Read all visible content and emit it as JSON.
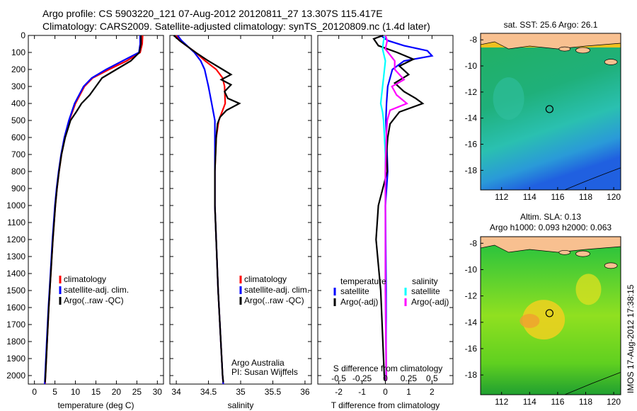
{
  "header": {
    "line1": "Argo profile: CS 5903220_121 07-Aug-2012 20120811_27 13.307S 115.417E",
    "line2": "Climatology: CARS2009. Satellite-adjusted climatology: synTS_20120809.nc (1.4d later)"
  },
  "side_stamp": "IMOS 17-Aug-2012 17:38:15",
  "chart_data": [
    {
      "type": "line",
      "id": "temperature",
      "xlabel": "temperature (deg C)",
      "xlim": [
        -1.5,
        31.5
      ],
      "ylim": [
        0,
        2050
      ],
      "xticks": [
        0,
        5,
        10,
        15,
        20,
        25,
        30
      ],
      "yticks": [
        0,
        100,
        200,
        300,
        400,
        500,
        600,
        700,
        800,
        900,
        1000,
        1100,
        1200,
        1300,
        1400,
        1500,
        1600,
        1700,
        1800,
        1900,
        2000
      ],
      "legend": [
        "climatology",
        "satellite-adj. clim.",
        "Argo(..raw -QC)"
      ],
      "series": [
        {
          "name": "climatology",
          "color": "#ff0000",
          "depth": [
            0,
            50,
            100,
            150,
            200,
            250,
            300,
            400,
            500,
            600,
            700,
            800,
            900,
            1000,
            1200,
            1400,
            1600,
            1800,
            2000,
            2050
          ],
          "values": [
            26.4,
            26.3,
            25.8,
            22.5,
            18.2,
            14.2,
            12.2,
            10,
            8.5,
            7.4,
            6.6,
            6,
            5.5,
            5.1,
            4.5,
            4,
            3.5,
            3.1,
            2.7,
            2.6
          ]
        },
        {
          "name": "satellite-adj. clim.",
          "color": "#0000ff",
          "depth": [
            0,
            50,
            100,
            150,
            200,
            250,
            300,
            400,
            500,
            600,
            700,
            800,
            900,
            1000,
            1200,
            1400,
            1600,
            1800,
            2000,
            2050
          ],
          "values": [
            25.8,
            25.8,
            25.5,
            21.5,
            17.5,
            14,
            12,
            9.8,
            8.4,
            7.3,
            6.5,
            5.9,
            5.4,
            5,
            4.4,
            3.9,
            3.4,
            3,
            2.6,
            2.5
          ]
        },
        {
          "name": "Argo(..raw -QC)",
          "color": "#000000",
          "depth": [
            0,
            50,
            100,
            150,
            200,
            250,
            300,
            350,
            400,
            450,
            500,
            600,
            700,
            800,
            900,
            1000,
            1200,
            1400,
            1600,
            1800,
            2000,
            2040
          ],
          "values": [
            26,
            26,
            25.6,
            23.5,
            20,
            16.5,
            15,
            13.5,
            11.5,
            10.2,
            8.8,
            7.5,
            6.6,
            6,
            5.5,
            5.1,
            4.5,
            4,
            3.5,
            3.1,
            2.7,
            2.6
          ]
        }
      ]
    },
    {
      "type": "line",
      "id": "salinity",
      "xlabel": "salinity",
      "xlim": [
        33.9,
        36.1
      ],
      "ylim": [
        0,
        2050
      ],
      "xticks": [
        34,
        34.5,
        35,
        35.5,
        36
      ],
      "legend": [
        "climatology",
        "satellite-adj. clim.",
        "Argo(..raw -QC)"
      ],
      "annotation": [
        "Argo Australia",
        "PI: Susan Wijffels"
      ],
      "series": [
        {
          "name": "climatology",
          "color": "#ff0000",
          "depth": [
            0,
            30,
            100,
            150,
            200,
            250,
            300,
            400,
            500,
            600,
            800,
            1000,
            1500,
            2000,
            2050
          ],
          "values": [
            34,
            34.05,
            34.3,
            34.45,
            34.62,
            34.72,
            34.75,
            34.76,
            34.66,
            34.62,
            34.6,
            34.6,
            34.65,
            34.72,
            34.73
          ]
        },
        {
          "name": "satellite-adj. clim.",
          "color": "#0000ff",
          "depth": [
            0,
            30,
            100,
            150,
            200,
            250,
            300,
            400,
            500,
            600,
            800,
            1000,
            1500,
            2000,
            2050
          ],
          "values": [
            34.02,
            34.08,
            34.28,
            34.38,
            34.44,
            34.47,
            34.5,
            34.55,
            34.6,
            34.6,
            34.6,
            34.6,
            34.65,
            34.72,
            34.73
          ]
        },
        {
          "name": "Argo(..raw -QC)",
          "color": "#000000",
          "depth": [
            0,
            30,
            100,
            150,
            200,
            230,
            260,
            290,
            330,
            370,
            400,
            440,
            480,
            520,
            600,
            800,
            1000,
            1500,
            2000,
            2040
          ],
          "values": [
            33.96,
            34.05,
            34.3,
            34.5,
            34.72,
            34.85,
            34.7,
            34.85,
            34.75,
            34.8,
            34.98,
            34.78,
            34.68,
            34.64,
            34.62,
            34.6,
            34.6,
            34.65,
            34.72,
            34.73
          ]
        }
      ]
    },
    {
      "type": "line",
      "id": "difference",
      "xlabel": "T difference from climatology",
      "xlabel2": "S difference from climatology",
      "xlim": [
        -2.9,
        2.9
      ],
      "xlim2": [
        -0.725,
        0.725
      ],
      "xticks": [
        -2,
        -1,
        0,
        1,
        2
      ],
      "xticks2": [
        -0.5,
        -0.25,
        0,
        0.25,
        0.5
      ],
      "legend_titles": [
        "temperature",
        "salinity"
      ],
      "legend": [
        "satellite",
        "Argo(-adj)",
        "satellite",
        "Argo(-adj)"
      ],
      "series": [
        {
          "name": "T satellite",
          "axis": "T",
          "color": "#0000ff",
          "depth": [
            0,
            30,
            60,
            90,
            120,
            150,
            200,
            300,
            400,
            500,
            600,
            800,
            1000,
            1500,
            2000,
            2030
          ],
          "values": [
            -0.2,
            0.1,
            0.8,
            1.8,
            2,
            0.8,
            0.3,
            0.1,
            0.05,
            0.02,
            0.05,
            0.1,
            0,
            0.03,
            0.03,
            0.02
          ]
        },
        {
          "name": "T Argo(-adj)",
          "axis": "T",
          "color": "#000000",
          "depth": [
            0,
            20,
            60,
            100,
            140,
            180,
            230,
            280,
            330,
            370,
            400,
            450,
            520,
            600,
            700,
            800,
            1000,
            1200,
            1500,
            2000,
            2030
          ],
          "values": [
            -0.1,
            -0.5,
            -0.3,
            0.5,
            1.2,
            0.6,
            1,
            0.4,
            0.8,
            1.3,
            1.6,
            0.6,
            0.2,
            0.1,
            0.05,
            0.08,
            -0.3,
            -0.4,
            -0.2,
            -0.05,
            0
          ]
        },
        {
          "name": "S satellite",
          "axis": "S",
          "color": "#00ffff",
          "depth": [
            0,
            30,
            80,
            150,
            250,
            350,
            400,
            450,
            500,
            700,
            1000,
            1500,
            2000,
            2030
          ],
          "values": [
            0,
            -0.02,
            -0.03,
            0,
            -0.02,
            -0.04,
            -0.05,
            -0.03,
            -0.02,
            0,
            0,
            0,
            0.01,
            0.01
          ]
        },
        {
          "name": "S Argo(-adj)",
          "axis": "S",
          "color": "#ff00ff",
          "depth": [
            0,
            30,
            80,
            150,
            200,
            260,
            300,
            350,
            400,
            440,
            500,
            600,
            800,
            1000,
            1500,
            2000,
            2030
          ],
          "values": [
            0,
            0.02,
            0,
            0.1,
            0.1,
            0.2,
            0.07,
            0.12,
            0.23,
            0.05,
            0.02,
            0.01,
            0,
            0,
            0,
            0.01,
            0.01
          ]
        }
      ]
    },
    {
      "type": "heatmap",
      "id": "sst_map",
      "title": "sat. SST: 25.6  Argo: 26.1",
      "xlim": [
        110.5,
        120.5
      ],
      "ylim": [
        -19.5,
        -7.5
      ],
      "xticks": [
        112,
        114,
        116,
        118,
        120
      ],
      "yticks": [
        -8,
        -10,
        -12,
        -14,
        -16,
        -18
      ],
      "marker": {
        "lon": 115.417,
        "lat": -13.307
      }
    },
    {
      "type": "heatmap",
      "id": "sla_map",
      "title": "Altim. SLA: 0.13",
      "title2": "Argo h1000: 0.093 h2000: 0.063",
      "xlim": [
        110.5,
        120.5
      ],
      "ylim": [
        -19.5,
        -7.5
      ],
      "xticks": [
        112,
        114,
        116,
        118,
        120
      ],
      "yticks": [
        -8,
        -10,
        -12,
        -14,
        -16,
        -18
      ],
      "marker": {
        "lon": 115.417,
        "lat": -13.307
      }
    }
  ]
}
